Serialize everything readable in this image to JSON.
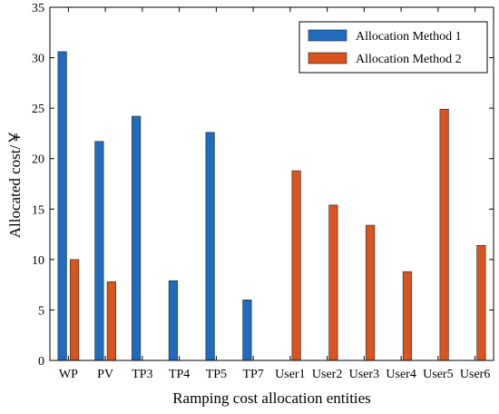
{
  "chart_data": {
    "type": "bar",
    "xlabel": "Ramping cost allocation entities",
    "ylabel": "Allocated cost/￥",
    "ylim": [
      0,
      35
    ],
    "yticks": [
      0,
      5,
      10,
      15,
      20,
      25,
      30,
      35
    ],
    "grid": false,
    "legend_position": "top-right",
    "categories": [
      "WP",
      "PV",
      "TP3",
      "TP4",
      "TP5",
      "TP7",
      "User1",
      "User2",
      "User3",
      "User4",
      "User5",
      "User6"
    ],
    "series": [
      {
        "name": "Allocation Method 1",
        "color": "#1f6cbf",
        "values": [
          30.6,
          21.7,
          24.2,
          7.9,
          22.6,
          6.0,
          0,
          0,
          0,
          0,
          0,
          0
        ]
      },
      {
        "name": "Allocation Method 2",
        "color": "#d9541f",
        "values": [
          10.0,
          7.8,
          0,
          0,
          0,
          0,
          18.8,
          15.4,
          13.4,
          8.8,
          24.9,
          11.4
        ]
      }
    ]
  }
}
